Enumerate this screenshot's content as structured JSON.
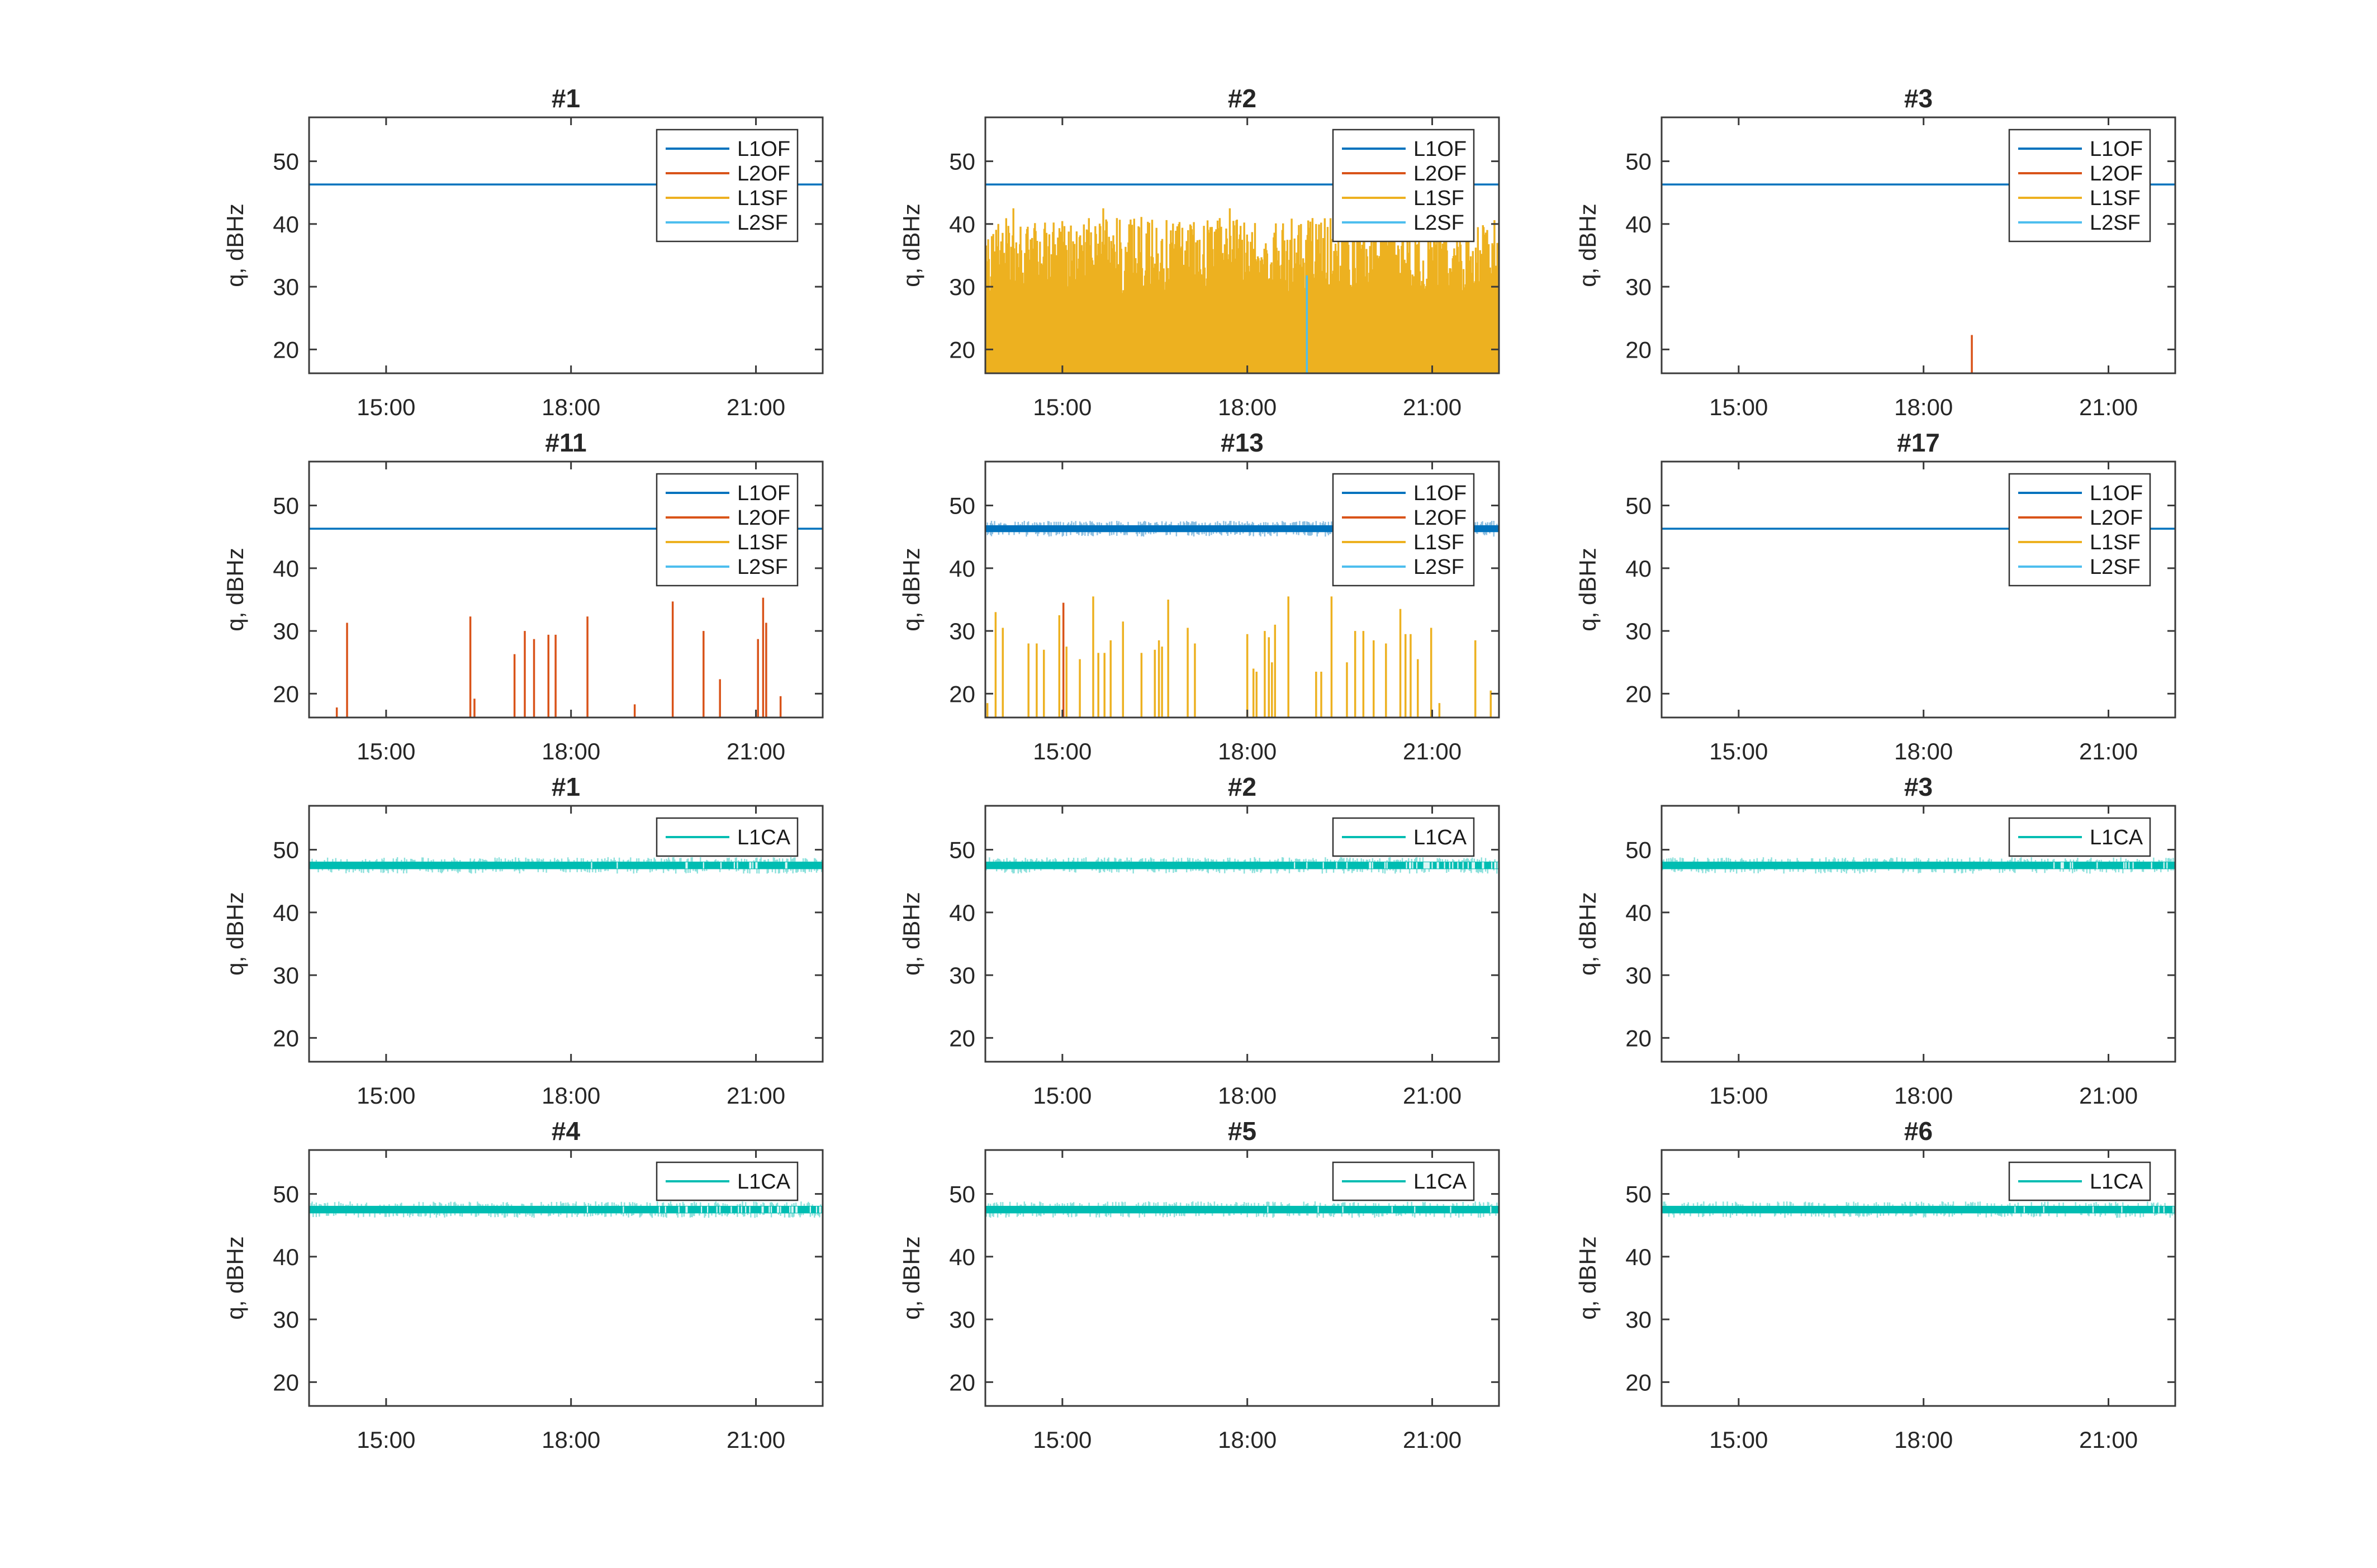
{
  "figure": {
    "background": "#ffffff",
    "axis_color": "#3a3a3a",
    "text_color": "#262626",
    "legend_border_color": "#333333",
    "legend_background": "#ffffff"
  },
  "signal_colors": {
    "L1OF": "#0072BD",
    "L2OF": "#D95319",
    "L1SF": "#EDB120",
    "L2SF": "#4DBEEE",
    "L1CA": "#00BDB2"
  },
  "chart_data": {
    "type": "line",
    "grid": "off",
    "legend_position": "upper-right-inside",
    "x_axis": {
      "kind": "time-of-day",
      "range_minutes": [
        825,
        1325
      ],
      "tick_minutes": [
        900,
        1080,
        1260
      ],
      "tick_labels": [
        "15:00",
        "18:00",
        "21:00"
      ]
    },
    "y_axis": {
      "label": "q, dBHz",
      "range": [
        16.2,
        57
      ],
      "ticks": [
        20,
        30,
        40,
        50
      ],
      "tick_labels": [
        "20",
        "30",
        "40",
        "50"
      ]
    },
    "subplots": [
      {
        "row": 0,
        "col": 0,
        "title": "#1",
        "system": "glonass",
        "legend": [
          "L1OF",
          "L2OF",
          "L1SF",
          "L2SF"
        ],
        "series": [
          {
            "type": "hline",
            "signal": "L1OF",
            "y": 46.3
          }
        ]
      },
      {
        "row": 0,
        "col": 1,
        "title": "#2",
        "system": "glonass",
        "legend": [
          "L1OF",
          "L2OF",
          "L1SF",
          "L2SF"
        ],
        "series": [
          {
            "type": "noise_fill",
            "signal": "L1SF",
            "seed": 42,
            "top_base": 29,
            "top_spread": 12,
            "dropout": 0.04
          },
          {
            "type": "vline",
            "signal": "L2SF",
            "t": 1138,
            "top": 31.8
          },
          {
            "type": "hline",
            "signal": "L1OF",
            "y": 46.3
          }
        ]
      },
      {
        "row": 0,
        "col": 2,
        "title": "#3",
        "system": "glonass",
        "legend": [
          "L1OF",
          "L2OF",
          "L1SF",
          "L2SF"
        ],
        "series": [
          {
            "type": "hline",
            "signal": "L1OF",
            "y": 46.3
          },
          {
            "type": "spikes",
            "signal": "L2OF",
            "points": [
              [
                1127,
                22.3
              ]
            ]
          }
        ]
      },
      {
        "row": 1,
        "col": 0,
        "title": "#11",
        "system": "glonass",
        "legend": [
          "L1OF",
          "L2OF",
          "L1SF",
          "L2SF"
        ],
        "series": [
          {
            "type": "hline",
            "signal": "L1OF",
            "y": 46.3
          },
          {
            "type": "spikes",
            "signal": "L2OF",
            "points": [
              [
                852,
                17.8
              ],
              [
                862,
                31.3
              ],
              [
                982,
                32.3
              ],
              [
                986,
                19.2
              ],
              [
                1025,
                26.3
              ],
              [
                1035,
                30.0
              ],
              [
                1044,
                28.7
              ],
              [
                1058,
                29.4
              ],
              [
                1065,
                29.4
              ],
              [
                1096,
                32.3
              ],
              [
                1142,
                18.3
              ],
              [
                1179,
                34.7
              ],
              [
                1209,
                30.0
              ],
              [
                1225,
                22.3
              ],
              [
                1262,
                28.7
              ],
              [
                1267,
                35.3
              ],
              [
                1270,
                31.3
              ],
              [
                1284,
                19.6
              ]
            ]
          }
        ]
      },
      {
        "row": 1,
        "col": 1,
        "title": "#13",
        "system": "glonass",
        "legend": [
          "L1OF",
          "L2OF",
          "L1SF",
          "L2SF"
        ],
        "series": [
          {
            "type": "spikes",
            "signal": "L1SF",
            "points": [
              [
                827,
                18.5
              ],
              [
                835,
                33.0
              ],
              [
                842,
                30.5
              ],
              [
                867,
                28.0
              ],
              [
                875,
                28.0
              ],
              [
                882,
                27.0
              ],
              [
                897,
                32.5
              ],
              [
                904,
                27.5
              ],
              [
                917,
                25.5
              ],
              [
                930,
                35.5
              ],
              [
                935,
                26.5
              ],
              [
                941,
                26.5
              ],
              [
                947,
                28.5
              ],
              [
                959,
                31.5
              ],
              [
                977,
                26.5
              ],
              [
                990,
                27.0
              ],
              [
                994,
                28.5
              ],
              [
                997,
                27.5
              ],
              [
                1003,
                35.0
              ],
              [
                1022,
                30.5
              ],
              [
                1029,
                28.0
              ],
              [
                1080,
                29.5
              ],
              [
                1086,
                24.0
              ],
              [
                1089,
                23.5
              ],
              [
                1097,
                30.0
              ],
              [
                1101,
                29.0
              ],
              [
                1104,
                25.0
              ],
              [
                1107,
                31.0
              ],
              [
                1120,
                35.5
              ],
              [
                1147,
                23.5
              ],
              [
                1152,
                23.5
              ],
              [
                1162,
                35.5
              ],
              [
                1177,
                25.0
              ],
              [
                1185,
                30.0
              ],
              [
                1193,
                30.0
              ],
              [
                1203,
                28.5
              ],
              [
                1215,
                28.0
              ],
              [
                1229,
                33.5
              ],
              [
                1234,
                29.5
              ],
              [
                1239,
                29.5
              ],
              [
                1246,
                25.5
              ],
              [
                1259,
                30.5
              ],
              [
                1267,
                18.5
              ],
              [
                1302,
                28.5
              ],
              [
                1317,
                20.5
              ]
            ]
          },
          {
            "type": "spikes",
            "signal": "L2OF",
            "points": [
              [
                901,
                34.5
              ]
            ]
          },
          {
            "type": "band",
            "signal": "L1OF",
            "y": 46.3,
            "half": 0.55,
            "seed": 7,
            "fuzz": 0.85,
            "gaps": 0
          }
        ]
      },
      {
        "row": 1,
        "col": 2,
        "title": "#17",
        "system": "glonass",
        "legend": [
          "L1OF",
          "L2OF",
          "L1SF",
          "L2SF"
        ],
        "series": [
          {
            "type": "hline",
            "signal": "L1OF",
            "y": 46.3
          }
        ]
      },
      {
        "row": 2,
        "col": 0,
        "title": "#1",
        "system": "gps",
        "legend": [
          "L1CA"
        ],
        "series": [
          {
            "type": "band",
            "signal": "L1CA",
            "y": 47.5,
            "half": 0.6,
            "seed": 11,
            "fuzz": 0.55,
            "gaps": 0.1
          }
        ]
      },
      {
        "row": 2,
        "col": 1,
        "title": "#2",
        "system": "gps",
        "legend": [
          "L1CA"
        ],
        "series": [
          {
            "type": "band",
            "signal": "L1CA",
            "y": 47.5,
            "half": 0.6,
            "seed": 12,
            "fuzz": 0.6,
            "gaps": 0.28
          }
        ]
      },
      {
        "row": 2,
        "col": 2,
        "title": "#3",
        "system": "gps",
        "legend": [
          "L1CA"
        ],
        "series": [
          {
            "type": "band",
            "signal": "L1CA",
            "y": 47.5,
            "half": 0.6,
            "seed": 13,
            "fuzz": 0.5,
            "gaps": 0.08
          }
        ]
      },
      {
        "row": 3,
        "col": 0,
        "title": "#4",
        "system": "gps",
        "legend": [
          "L1CA"
        ],
        "series": [
          {
            "type": "band",
            "signal": "L1CA",
            "y": 47.5,
            "half": 0.6,
            "seed": 14,
            "fuzz": 0.6,
            "gaps": 0.32
          }
        ]
      },
      {
        "row": 3,
        "col": 1,
        "title": "#5",
        "system": "gps",
        "legend": [
          "L1CA"
        ],
        "series": [
          {
            "type": "band",
            "signal": "L1CA",
            "y": 47.5,
            "half": 0.6,
            "seed": 15,
            "fuzz": 0.5,
            "gaps": 0.06
          }
        ]
      },
      {
        "row": 3,
        "col": 2,
        "title": "#6",
        "system": "gps",
        "legend": [
          "L1CA"
        ],
        "series": [
          {
            "type": "band",
            "signal": "L1CA",
            "y": 47.5,
            "half": 0.6,
            "seed": 16,
            "fuzz": 0.5,
            "gaps": 0.05
          }
        ]
      }
    ]
  }
}
